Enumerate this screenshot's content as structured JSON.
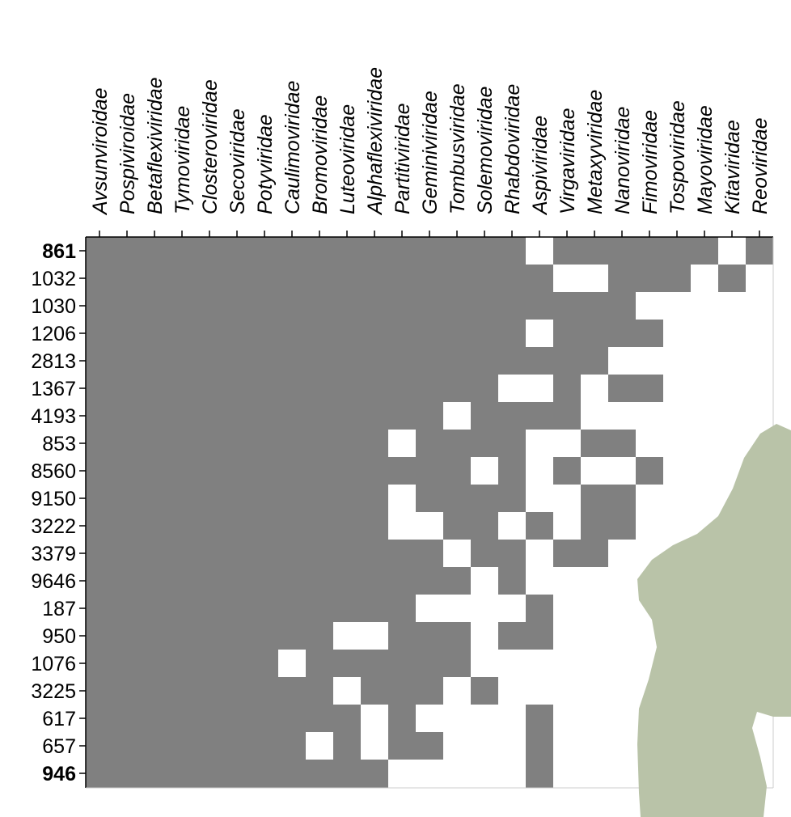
{
  "chart_data": {
    "type": "heatmap",
    "title": "",
    "xlabel": "",
    "ylabel": "",
    "columns": [
      "Avsunviroidae",
      "Pospiviroidae",
      "Betaflexiviridae",
      "Tymoviridae",
      "Closteroviridae",
      "Secoviridae",
      "Potyviridae",
      "Caulimoviridae",
      "Bromoviridae",
      "Luteoviridae",
      "Alphaflexiviridae",
      "Partitiviridae",
      "Geminiviridae",
      "Tombusviridae",
      "Solemoviridae",
      "Rhabdoviridae",
      "Aspiviridae",
      "Virgaviridae",
      "Metaxyviridae",
      "Nanoviridae",
      "Fimoviridae",
      "Tospoviridae",
      "Mayoviridae",
      "Kitaviridae",
      "Reoviridae"
    ],
    "rows": [
      "861",
      "1032",
      "1030",
      "1206",
      "2813",
      "1367",
      "4193",
      "853",
      "8560",
      "9150",
      "3222",
      "3379",
      "9646",
      "187",
      "950",
      "1076",
      "3225",
      "617",
      "657",
      "946"
    ],
    "bold_rows": [
      "861",
      "946"
    ],
    "cell_legend": {
      "1": "filled (gray)",
      "0": "empty (white)"
    },
    "matrix": [
      [
        1,
        1,
        1,
        1,
        1,
        1,
        1,
        1,
        1,
        1,
        1,
        1,
        1,
        1,
        1,
        1,
        0,
        1,
        1,
        1,
        1,
        1,
        1,
        0,
        1
      ],
      [
        1,
        1,
        1,
        1,
        1,
        1,
        1,
        1,
        1,
        1,
        1,
        1,
        1,
        1,
        1,
        1,
        1,
        0,
        0,
        1,
        1,
        1,
        0,
        1,
        0
      ],
      [
        1,
        1,
        1,
        1,
        1,
        1,
        1,
        1,
        1,
        1,
        1,
        1,
        1,
        1,
        1,
        1,
        1,
        1,
        1,
        1,
        0,
        0,
        0,
        0,
        0
      ],
      [
        1,
        1,
        1,
        1,
        1,
        1,
        1,
        1,
        1,
        1,
        1,
        1,
        1,
        1,
        1,
        1,
        0,
        1,
        1,
        1,
        1,
        0,
        0,
        0,
        0
      ],
      [
        1,
        1,
        1,
        1,
        1,
        1,
        1,
        1,
        1,
        1,
        1,
        1,
        1,
        1,
        1,
        1,
        1,
        1,
        1,
        0,
        0,
        0,
        0,
        0,
        0
      ],
      [
        1,
        1,
        1,
        1,
        1,
        1,
        1,
        1,
        1,
        1,
        1,
        1,
        1,
        1,
        1,
        0,
        0,
        1,
        0,
        1,
        1,
        0,
        0,
        0,
        0
      ],
      [
        1,
        1,
        1,
        1,
        1,
        1,
        1,
        1,
        1,
        1,
        1,
        1,
        1,
        0,
        1,
        1,
        1,
        1,
        0,
        0,
        0,
        0,
        0,
        0,
        0
      ],
      [
        1,
        1,
        1,
        1,
        1,
        1,
        1,
        1,
        1,
        1,
        1,
        0,
        1,
        1,
        1,
        1,
        0,
        0,
        1,
        1,
        0,
        0,
        0,
        0,
        0
      ],
      [
        1,
        1,
        1,
        1,
        1,
        1,
        1,
        1,
        1,
        1,
        1,
        1,
        1,
        1,
        0,
        1,
        0,
        1,
        0,
        0,
        1,
        0,
        0,
        0,
        0
      ],
      [
        1,
        1,
        1,
        1,
        1,
        1,
        1,
        1,
        1,
        1,
        1,
        0,
        1,
        1,
        1,
        1,
        0,
        0,
        1,
        1,
        0,
        0,
        0,
        0,
        0
      ],
      [
        1,
        1,
        1,
        1,
        1,
        1,
        1,
        1,
        1,
        1,
        1,
        0,
        0,
        1,
        1,
        0,
        1,
        0,
        1,
        1,
        0,
        0,
        0,
        0,
        0
      ],
      [
        1,
        1,
        1,
        1,
        1,
        1,
        1,
        1,
        1,
        1,
        1,
        1,
        1,
        0,
        1,
        1,
        0,
        1,
        1,
        0,
        0,
        0,
        0,
        0,
        0
      ],
      [
        1,
        1,
        1,
        1,
        1,
        1,
        1,
        1,
        1,
        1,
        1,
        1,
        1,
        1,
        0,
        1,
        0,
        0,
        0,
        0,
        0,
        0,
        0,
        0,
        0
      ],
      [
        1,
        1,
        1,
        1,
        1,
        1,
        1,
        1,
        1,
        1,
        1,
        1,
        0,
        0,
        0,
        0,
        1,
        0,
        0,
        0,
        0,
        1,
        0,
        0,
        0
      ],
      [
        1,
        1,
        1,
        1,
        1,
        1,
        1,
        1,
        1,
        0,
        0,
        1,
        1,
        1,
        0,
        1,
        1,
        0,
        0,
        0,
        0,
        0,
        0,
        0,
        0
      ],
      [
        1,
        1,
        1,
        1,
        1,
        1,
        1,
        0,
        1,
        1,
        1,
        1,
        1,
        1,
        0,
        0,
        0,
        0,
        0,
        0,
        0,
        0,
        0,
        0,
        0
      ],
      [
        1,
        1,
        1,
        1,
        1,
        1,
        1,
        1,
        1,
        0,
        1,
        1,
        1,
        0,
        1,
        0,
        0,
        0,
        0,
        0,
        0,
        0,
        0,
        0,
        0
      ],
      [
        1,
        1,
        1,
        1,
        1,
        1,
        1,
        1,
        1,
        1,
        0,
        1,
        0,
        0,
        0,
        0,
        1,
        0,
        0,
        0,
        0,
        0,
        0,
        0,
        0
      ],
      [
        1,
        1,
        1,
        1,
        1,
        1,
        1,
        1,
        0,
        1,
        0,
        1,
        1,
        0,
        0,
        0,
        1,
        0,
        0,
        0,
        0,
        0,
        0,
        0,
        0
      ],
      [
        1,
        1,
        1,
        1,
        1,
        1,
        1,
        1,
        1,
        1,
        1,
        0,
        0,
        0,
        0,
        0,
        1,
        0,
        0,
        0,
        0,
        0,
        0,
        0,
        0
      ]
    ],
    "grid": false,
    "legend": "none"
  },
  "colors": {
    "filled": "#808080",
    "empty": "#ffffff",
    "axis": "#000000",
    "overlay_shape": "#b9c3a8"
  }
}
